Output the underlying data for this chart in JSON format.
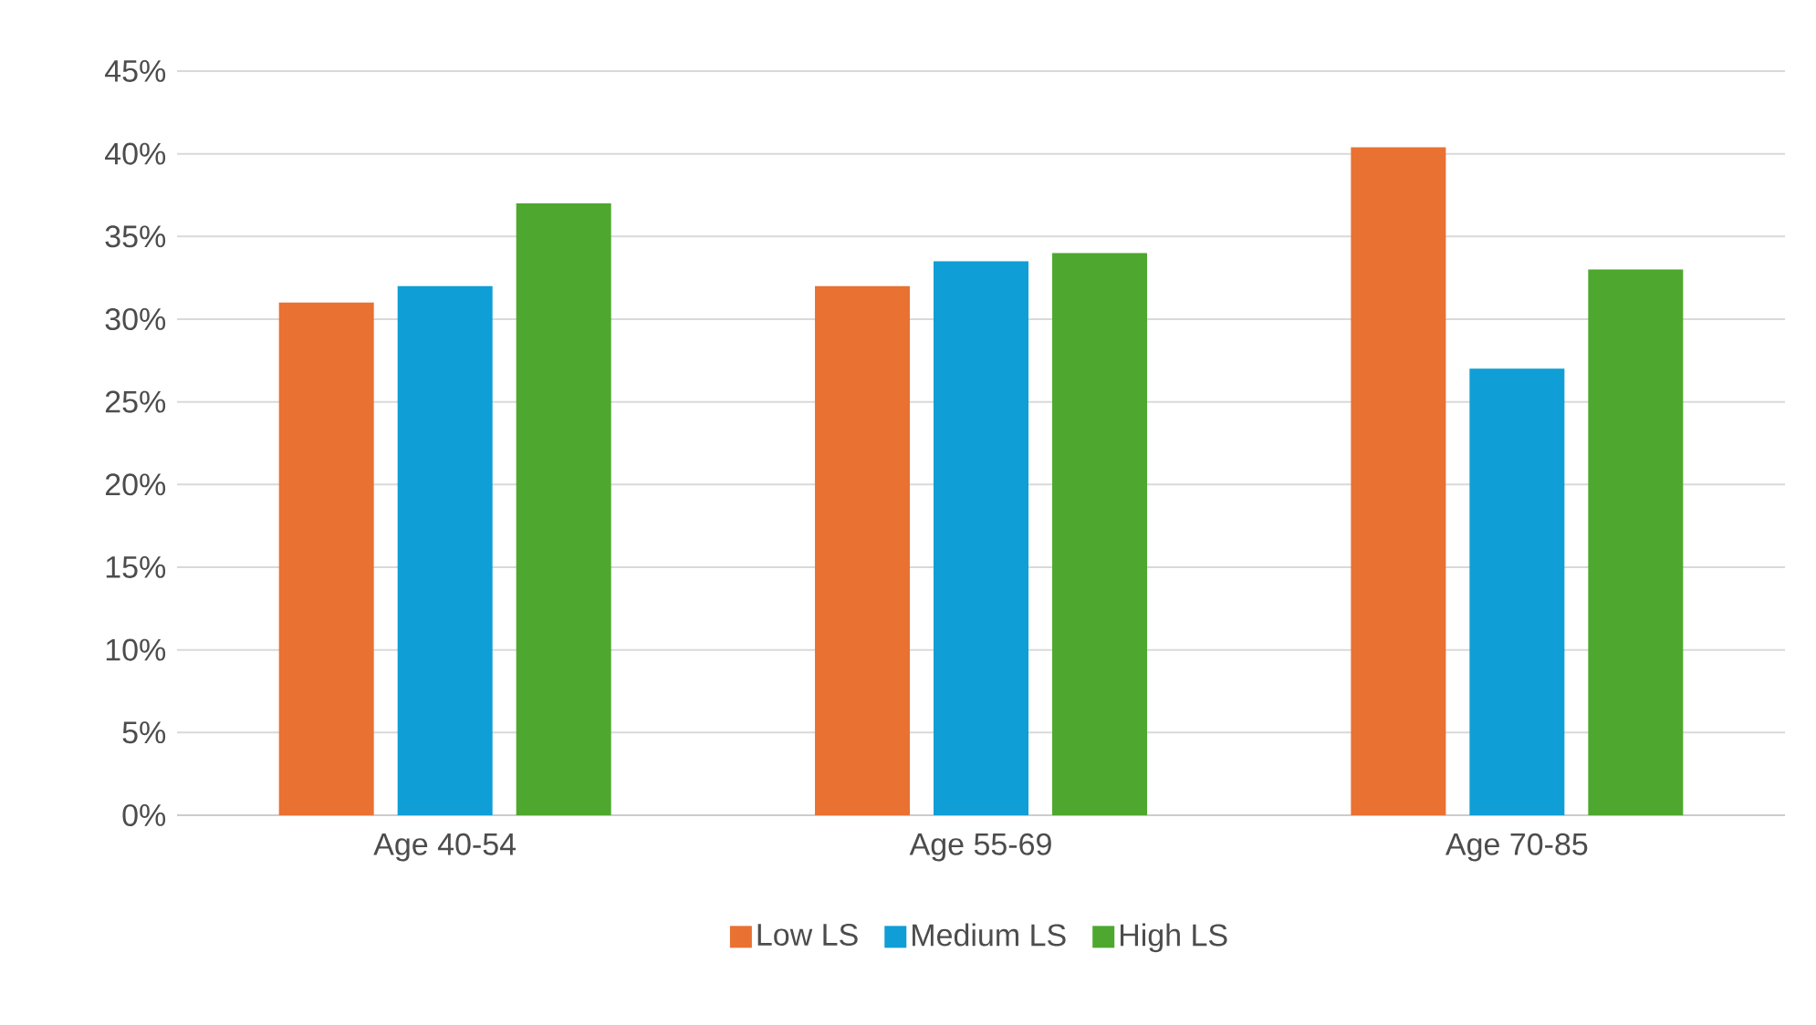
{
  "chart_data": {
    "type": "bar",
    "categories": [
      "Age 40-54",
      "Age 55-69",
      "Age 70-85"
    ],
    "series": [
      {
        "name": "Low LS",
        "color": "#e97132",
        "values": [
          31,
          32,
          40.4
        ]
      },
      {
        "name": "Medium LS",
        "color": "#0f9ed5",
        "values": [
          32,
          33.5,
          27
        ]
      },
      {
        "name": "High LS",
        "color": "#4ea72e",
        "values": [
          37,
          34,
          33
        ]
      }
    ],
    "ylim": [
      0,
      45
    ],
    "yticks": [
      {
        "value": 0,
        "label": "0%"
      },
      {
        "value": 5,
        "label": "5%"
      },
      {
        "value": 10,
        "label": "10%"
      },
      {
        "value": 15,
        "label": "15%"
      },
      {
        "value": 20,
        "label": "20%"
      },
      {
        "value": 25,
        "label": "25%"
      },
      {
        "value": 30,
        "label": "30%"
      },
      {
        "value": 35,
        "label": "35%"
      },
      {
        "value": 40,
        "label": "40%"
      },
      {
        "value": 45,
        "label": "45%"
      }
    ],
    "grid": "y",
    "legend": "bottom"
  }
}
